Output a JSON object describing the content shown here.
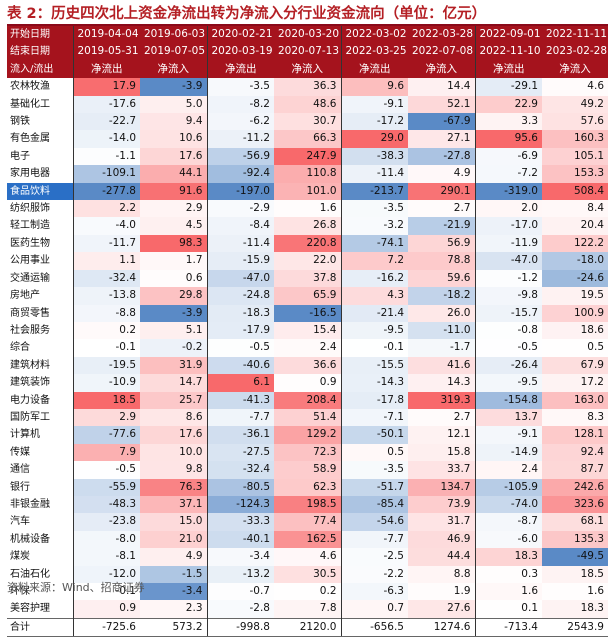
{
  "title": "表 2：历史四次北上资金净流出转为净流入分行业资金流向（单位：亿元）",
  "header": {
    "start_label": "开始日期",
    "end_label": "结束日期",
    "flow_label": "流入/流出",
    "start_dates": [
      "2019-04-04",
      "2019-06-03",
      "2020-02-21",
      "2020-03-20",
      "2022-03-02",
      "2022-03-28",
      "2022-09-01",
      "2022-11-11"
    ],
    "end_dates": [
      "2019-05-31",
      "2019-07-05",
      "2020-03-19",
      "2020-07-13",
      "2022-03-25",
      "2022-07-08",
      "2022-11-10",
      "2023-02-28"
    ],
    "flows": [
      "净流出",
      "净流入",
      "净流出",
      "净流入",
      "净流出",
      "净流入",
      "净流出",
      "净流入"
    ]
  },
  "rows": [
    {
      "name": "农林牧渔",
      "values": [
        "17.9",
        "-3.9",
        "-3.5",
        "36.3",
        "9.6",
        "14.4",
        "-29.1",
        "4.6"
      ]
    },
    {
      "name": "基础化工",
      "values": [
        "-17.6",
        "5.0",
        "-8.2",
        "48.6",
        "-9.1",
        "52.1",
        "22.9",
        "49.2"
      ]
    },
    {
      "name": "钢铁",
      "values": [
        "-22.7",
        "9.4",
        "-6.2",
        "30.7",
        "-17.2",
        "-67.9",
        "3.3",
        "57.6"
      ]
    },
    {
      "name": "有色金属",
      "values": [
        "-14.0",
        "10.6",
        "-11.2",
        "66.3",
        "29.0",
        "27.1",
        "95.6",
        "160.3"
      ]
    },
    {
      "name": "电子",
      "values": [
        "-1.1",
        "17.6",
        "-56.9",
        "247.9",
        "-38.3",
        "-27.8",
        "-6.9",
        "105.1"
      ]
    },
    {
      "name": "家用电器",
      "values": [
        "-109.1",
        "44.1",
        "-92.4",
        "110.8",
        "-11.4",
        "4.9",
        "-7.2",
        "153.3"
      ]
    },
    {
      "name": "食品饮料",
      "values": [
        "-277.8",
        "91.6",
        "-197.0",
        "101.0",
        "-213.7",
        "290.1",
        "-319.0",
        "508.4"
      ]
    },
    {
      "name": "纺织服饰",
      "values": [
        "2.2",
        "2.9",
        "-2.9",
        "1.6",
        "-3.5",
        "2.7",
        "2.0",
        "8.4"
      ]
    },
    {
      "name": "轻工制造",
      "values": [
        "-4.0",
        "4.5",
        "-8.4",
        "26.8",
        "-3.2",
        "-21.9",
        "-17.0",
        "20.4"
      ]
    },
    {
      "name": "医药生物",
      "values": [
        "-11.7",
        "98.3",
        "-11.4",
        "220.8",
        "-74.1",
        "56.9",
        "-11.9",
        "122.2"
      ]
    },
    {
      "name": "公用事业",
      "values": [
        "1.1",
        "1.7",
        "-15.9",
        "22.0",
        "7.2",
        "78.8",
        "-47.0",
        "-18.0"
      ]
    },
    {
      "name": "交通运输",
      "values": [
        "-32.4",
        "0.6",
        "-47.0",
        "37.8",
        "-16.2",
        "59.6",
        "-1.2",
        "-24.6"
      ]
    },
    {
      "name": "房地产",
      "values": [
        "-13.8",
        "29.8",
        "-24.8",
        "65.9",
        "4.3",
        "-18.2",
        "-9.8",
        "19.5"
      ]
    },
    {
      "name": "商贸零售",
      "values": [
        "-8.8",
        "-3.9",
        "-18.3",
        "-16.5",
        "-21.4",
        "26.0",
        "-15.7",
        "100.9"
      ]
    },
    {
      "name": "社会服务",
      "values": [
        "0.2",
        "5.1",
        "-17.9",
        "15.4",
        "-9.5",
        "-11.0",
        "-0.8",
        "18.6"
      ]
    },
    {
      "name": "综合",
      "values": [
        "-0.1",
        "-0.2",
        "-0.5",
        "2.4",
        "-0.1",
        "-1.7",
        "-0.5",
        "0.5"
      ]
    },
    {
      "name": "建筑材料",
      "values": [
        "-19.5",
        "31.9",
        "-40.6",
        "36.6",
        "-15.5",
        "41.6",
        "-26.4",
        "67.9"
      ]
    },
    {
      "name": "建筑装饰",
      "values": [
        "-10.9",
        "14.7",
        "6.1",
        "0.9",
        "-14.3",
        "14.3",
        "-9.5",
        "17.2"
      ]
    },
    {
      "name": "电力设备",
      "values": [
        "18.5",
        "25.7",
        "-41.3",
        "208.4",
        "-17.8",
        "319.3",
        "-154.8",
        "163.0"
      ]
    },
    {
      "name": "国防军工",
      "values": [
        "2.9",
        "8.6",
        "-7.7",
        "51.4",
        "-7.1",
        "2.7",
        "13.7",
        "8.3"
      ]
    },
    {
      "name": "计算机",
      "values": [
        "-77.6",
        "17.6",
        "-36.1",
        "129.2",
        "-50.1",
        "12.1",
        "-9.1",
        "128.1"
      ]
    },
    {
      "name": "传媒",
      "values": [
        "7.9",
        "10.0",
        "-27.5",
        "72.3",
        "0.5",
        "15.8",
        "-14.9",
        "92.4"
      ]
    },
    {
      "name": "通信",
      "values": [
        "-0.5",
        "9.8",
        "-32.4",
        "58.9",
        "-3.5",
        "33.7",
        "2.4",
        "87.7"
      ]
    },
    {
      "name": "银行",
      "values": [
        "-55.9",
        "76.3",
        "-80.5",
        "62.3",
        "-51.7",
        "134.7",
        "-105.9",
        "242.6"
      ]
    },
    {
      "name": "非银金融",
      "values": [
        "-48.3",
        "37.1",
        "-124.3",
        "198.5",
        "-85.4",
        "73.9",
        "-74.0",
        "323.6"
      ]
    },
    {
      "name": "汽车",
      "values": [
        "-23.8",
        "15.0",
        "-33.3",
        "77.4",
        "-54.6",
        "31.7",
        "-8.7",
        "68.1"
      ]
    },
    {
      "name": "机械设备",
      "values": [
        "-8.0",
        "21.0",
        "-40.1",
        "162.5",
        "-7.7",
        "46.9",
        "-6.0",
        "135.3"
      ]
    },
    {
      "name": "煤炭",
      "values": [
        "-8.1",
        "4.9",
        "-3.4",
        "4.6",
        "-2.5",
        "44.4",
        "18.3",
        "-49.5"
      ]
    },
    {
      "name": "石油石化",
      "values": [
        "-12.0",
        "-1.5",
        "-13.2",
        "30.5",
        "-2.2",
        "8.8",
        "0.3",
        "18.5"
      ]
    },
    {
      "name": "环保",
      "values": [
        "-0.1",
        "-3.4",
        "-0.7",
        "0.2",
        "-6.3",
        "1.9",
        "1.6",
        "1.6"
      ]
    },
    {
      "name": "美容护理",
      "values": [
        "0.9",
        "2.3",
        "-2.8",
        "7.8",
        "0.7",
        "27.6",
        "0.1",
        "18.3"
      ]
    }
  ],
  "total": {
    "name": "合计",
    "values": [
      "-725.6",
      "573.2",
      "-998.8",
      "2120.0",
      "-656.5",
      "1274.6",
      "-713.4",
      "2543.9"
    ]
  },
  "source": "资料来源：Wind、招商证券",
  "colors": {
    "header_bg": "#a5131d",
    "positive": "#f8696b",
    "negative": "#5a8ac6",
    "neutral": "#ffffff"
  }
}
